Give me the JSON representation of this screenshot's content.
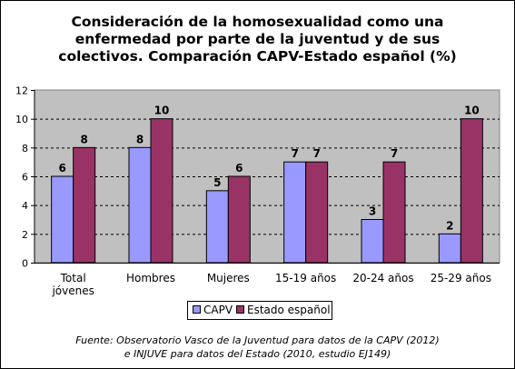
{
  "chart_data": {
    "type": "bar",
    "title_lines": [
      "Consideración de la homosexualidad como una",
      "enfermedad por parte de la juventud y de sus",
      "colectivos. Comparación CAPV-Estado español (%)"
    ],
    "categories": [
      [
        "Total",
        "jóvenes"
      ],
      [
        "Hombres"
      ],
      [
        "Mujeres"
      ],
      [
        "15-19 años"
      ],
      [
        "20-24 años"
      ],
      [
        "25-29 años"
      ]
    ],
    "series": [
      {
        "name": "CAPV",
        "values": [
          6,
          8,
          5,
          7,
          3,
          2
        ],
        "color": "#9999FF"
      },
      {
        "name": "Estado español",
        "values": [
          8,
          10,
          6,
          7,
          7,
          10
        ],
        "color": "#993366"
      }
    ],
    "ylim": [
      0,
      12
    ],
    "yticks": [
      "0",
      "2",
      "4",
      "6",
      "8",
      "10",
      "12"
    ],
    "grid": true,
    "plot_background": "#C0C0C0",
    "legend_position": "bottom",
    "xlabel": "",
    "ylabel": ""
  },
  "source_lines": [
    "Fuente: Observatorio Vasco de la Juventud para datos de la CAPV (2012)",
    "e INJUVE para datos del Estado (2010, estudio EJ149)"
  ]
}
